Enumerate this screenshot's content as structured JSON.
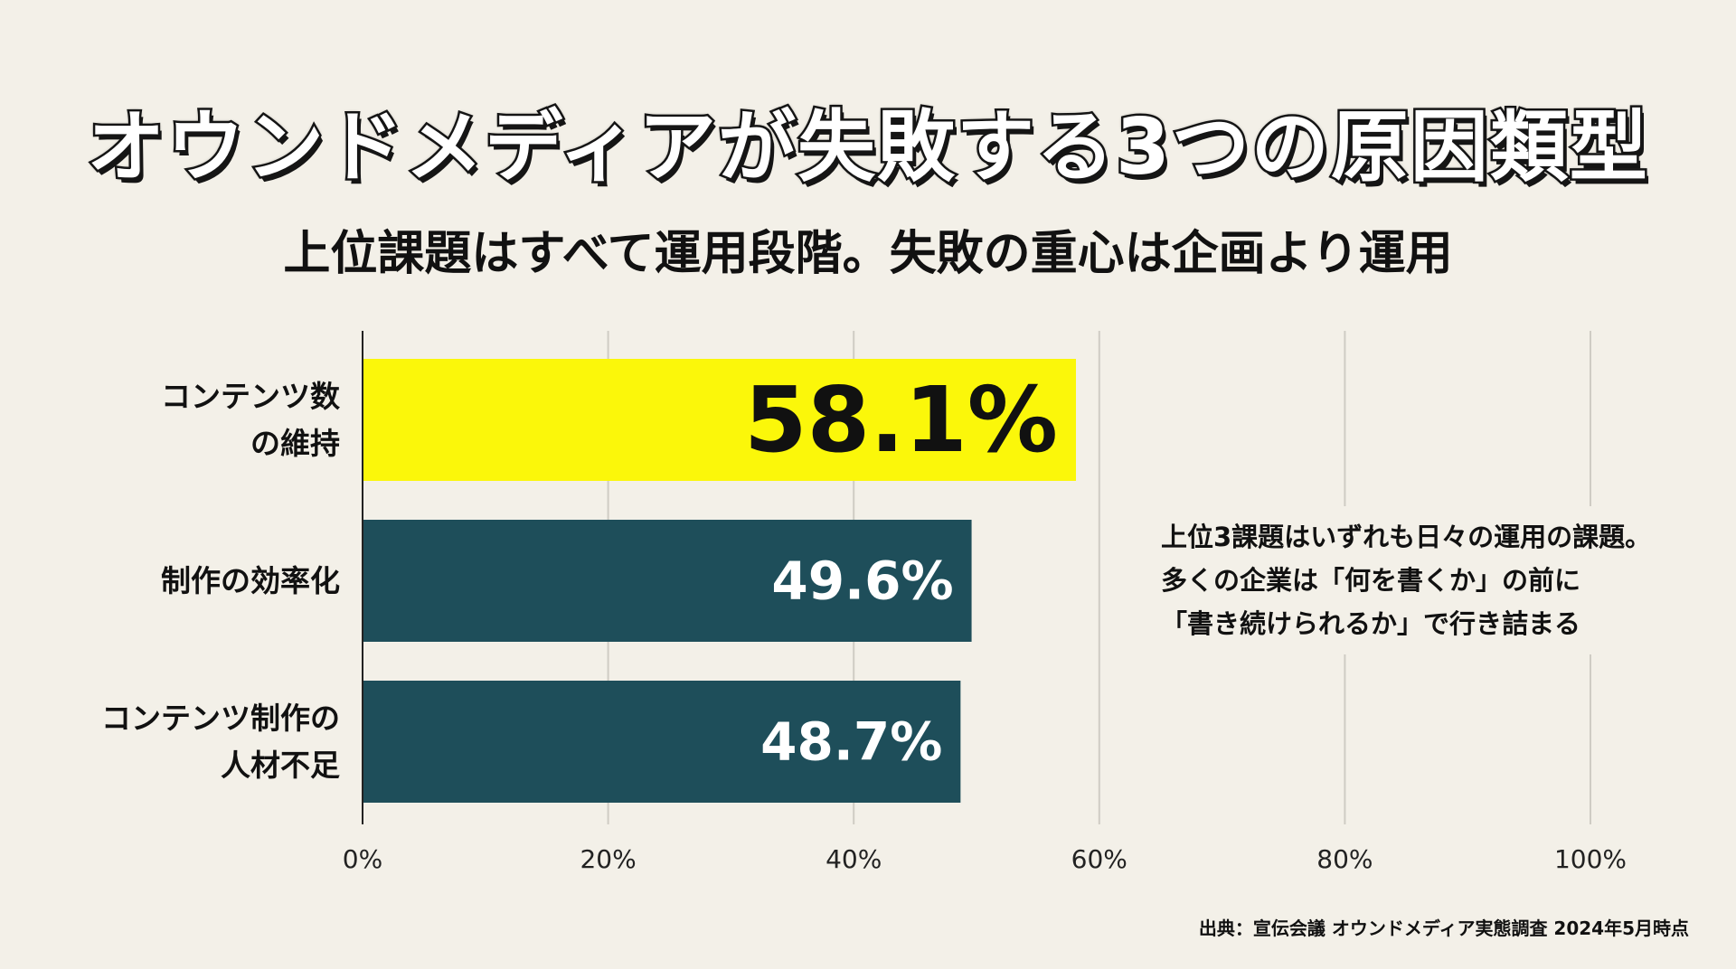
{
  "title": "オウンドメディアが失敗する3つの原因類型",
  "subtitle": "上位課題はすべて運用段階。失敗の重心は企画より運用",
  "chart_data": {
    "type": "bar",
    "orientation": "horizontal",
    "categories": [
      "コンテンツ数\nの維持",
      "制作の効率化",
      "コンテンツ制作の\n人材不足"
    ],
    "values": [
      58.1,
      49.6,
      48.7
    ],
    "value_labels": [
      "58.1%",
      "49.6%",
      "48.7%"
    ],
    "xlim": [
      0,
      100
    ],
    "xticks": [
      0,
      20,
      40,
      60,
      80,
      100
    ],
    "xtick_labels": [
      "0%",
      "20%",
      "40%",
      "60%",
      "80%",
      "100%"
    ],
    "grid": true,
    "colors": {
      "highlight_bar": "#fbf70a",
      "bar": "#1e4e5a",
      "highlight_label": "#111111",
      "label": "#ffffff",
      "grid": "#cfccc4",
      "axis": "#222222"
    }
  },
  "annotation": [
    "上位3課題はいずれも日々の運用の課題。",
    "多くの企業は「何を書くか」の前に",
    "「書き続けられるか」で行き詰まる"
  ],
  "source": "出典：宣伝会議 オウンドメディア実態調査 2024年5月時点"
}
